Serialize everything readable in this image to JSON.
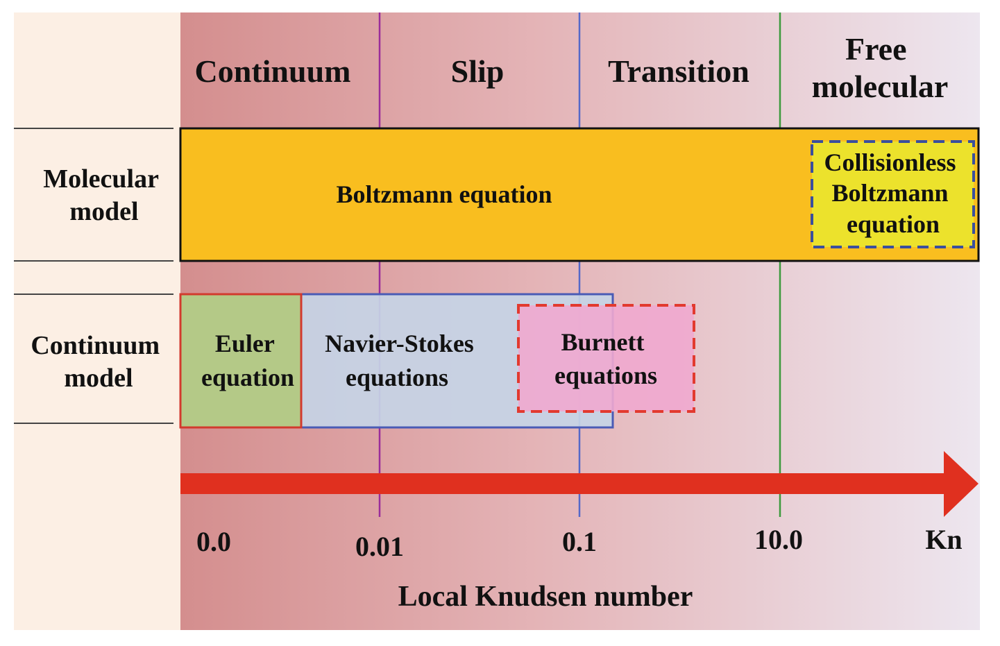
{
  "regimes": {
    "continuum": "Continuum",
    "slip": "Slip",
    "transition": "Transition",
    "free_molecular": [
      "Free",
      "molecular"
    ]
  },
  "row_labels": {
    "molecular_model": [
      "Molecular",
      "model"
    ],
    "continuum_model": [
      "Continuum",
      "model"
    ]
  },
  "models": {
    "boltzmann": "Boltzmann equation",
    "collisionless_boltzmann": [
      "Collisionless",
      "Boltzmann",
      "equation"
    ],
    "euler": [
      "Euler",
      "equation"
    ],
    "navier_stokes": [
      "Navier-Stokes",
      "equations"
    ],
    "burnett": [
      "Burnett",
      "equations"
    ]
  },
  "axis": {
    "ticks": [
      "0.0",
      "0.01",
      "0.1",
      "10.0"
    ],
    "symbol": "Kn",
    "title": "Local Knudsen number"
  },
  "colors": {
    "boltzmann_fill": "#f9be1f",
    "collisionless_fill": "#ece22c",
    "collisionless_border": "#3a4f9e",
    "euler_fill": "#b4c987",
    "euler_border": "#d23a2e",
    "navier_stokes_fill": "#c6d4e6",
    "navier_stokes_border": "#4a5bb5",
    "burnett_fill": "#f0a9cf",
    "burnett_border": "#e23a2f",
    "arrow": "#e0301f",
    "line_slip": "#9a2c9a",
    "line_transition": "#5568c8",
    "line_free_molecular": "#3d9a3d",
    "left_column_bg": "#fcefe4",
    "gradient_start": "#d48e8e",
    "gradient_end": "#ede6ef"
  }
}
